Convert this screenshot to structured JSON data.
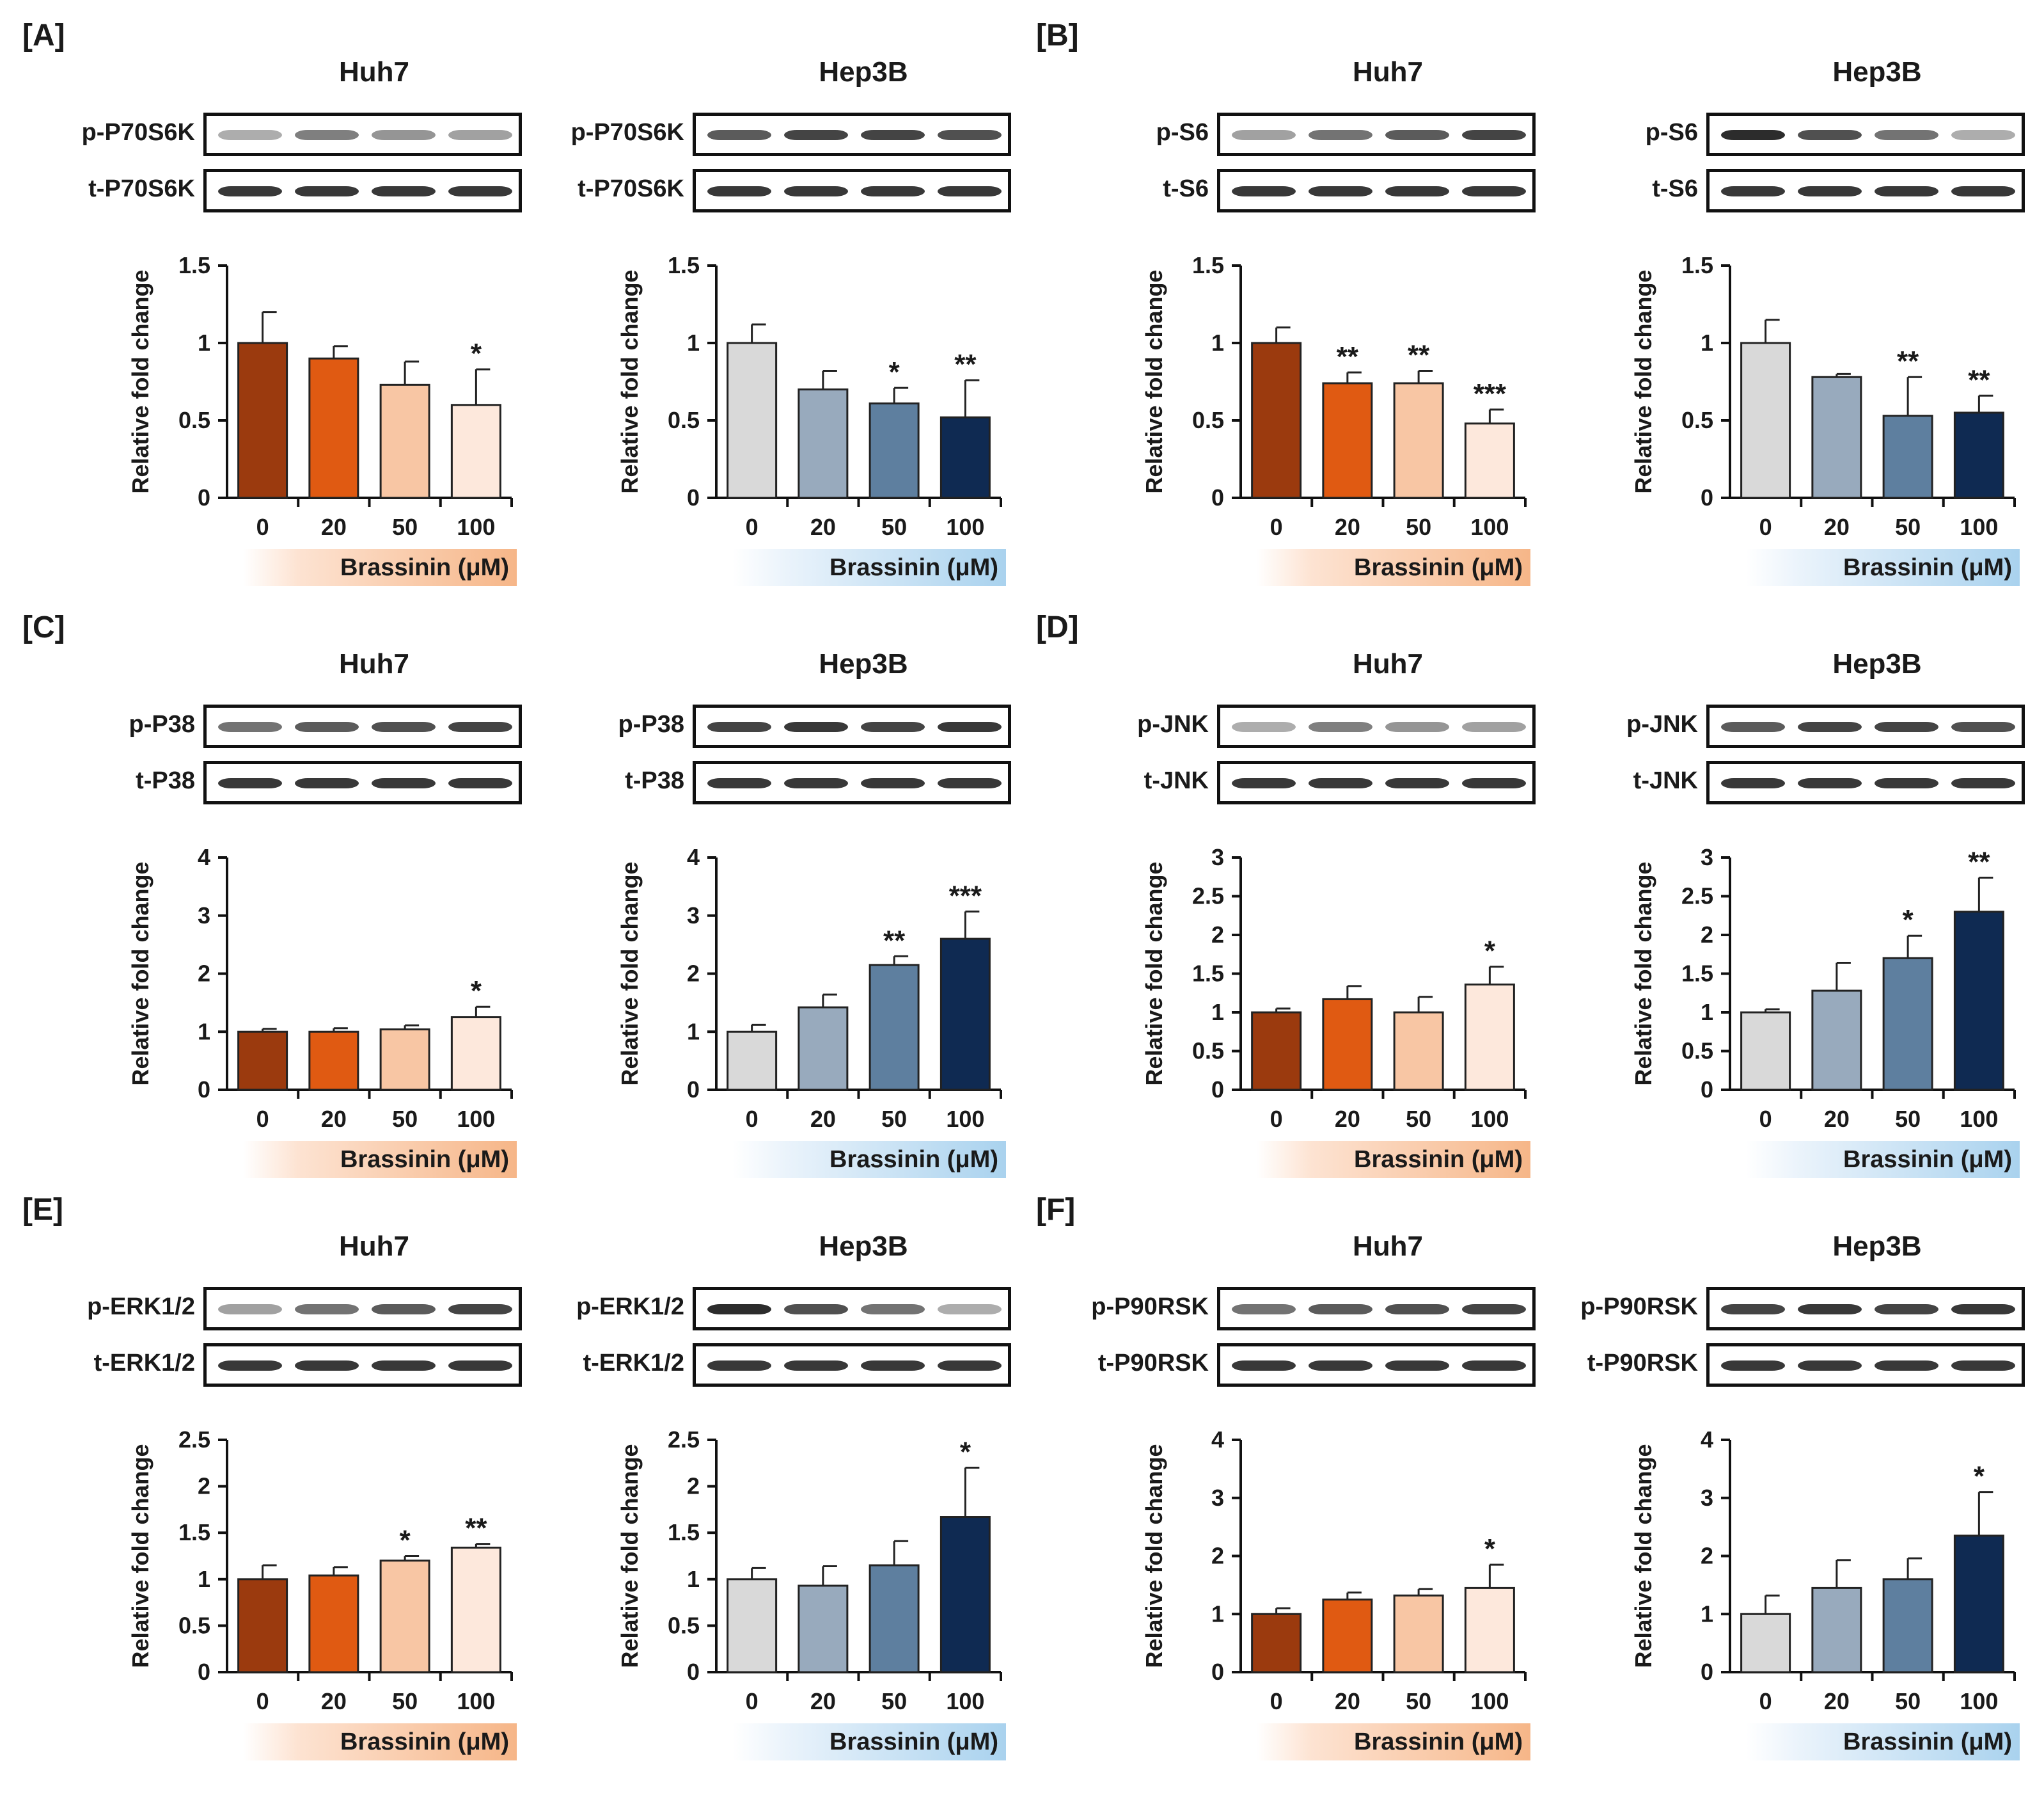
{
  "figure": {
    "x_caption": "Brassinin (μM)",
    "y_axis_label": "Relative fold change",
    "categories": [
      "0",
      "20",
      "50",
      "100"
    ],
    "colors": {
      "orange_series": [
        "#9b3a0e",
        "#e05a12",
        "#f8c6a4",
        "#fde8dc"
      ],
      "blue_series": [
        "#d9d9d9",
        "#98aabd",
        "#5e7f9f",
        "#0f2a52"
      ],
      "orange_caption_gradient": [
        "#fde3d2",
        "#f6b688"
      ],
      "blue_caption_gradient": [
        "#eaf3fb",
        "#a9d2ee"
      ],
      "blot_band": "#151515"
    }
  },
  "panels": [
    {
      "label": "[A]",
      "units": [
        {
          "cell": "Huh7",
          "blots": [
            "p-P70S6K",
            "t-P70S6K"
          ],
          "palette": "orange",
          "chart_data": {
            "type": "bar",
            "categories": [
              "0",
              "20",
              "50",
              "100"
            ],
            "values": [
              1.0,
              0.9,
              0.73,
              0.6
            ],
            "errors": [
              0.2,
              0.08,
              0.15,
              0.23
            ],
            "sig": [
              "",
              "",
              "",
              "*"
            ],
            "ylim": [
              0,
              1.5
            ],
            "yticks": [
              "0",
              "0.5",
              "1",
              "1.5"
            ],
            "ylabel": "Relative fold change",
            "xlabel": "Brassinin (μM)"
          }
        },
        {
          "cell": "Hep3B",
          "blots": [
            "p-P70S6K",
            "t-P70S6K"
          ],
          "palette": "blue",
          "chart_data": {
            "type": "bar",
            "categories": [
              "0",
              "20",
              "50",
              "100"
            ],
            "values": [
              1.0,
              0.7,
              0.61,
              0.52
            ],
            "errors": [
              0.12,
              0.12,
              0.1,
              0.24
            ],
            "sig": [
              "",
              "",
              "*",
              "**"
            ],
            "ylim": [
              0,
              1.5
            ],
            "yticks": [
              "0",
              "0.5",
              "1",
              "1.5"
            ],
            "ylabel": "Relative fold change",
            "xlabel": "Brassinin (μM)"
          }
        }
      ]
    },
    {
      "label": "[B]",
      "units": [
        {
          "cell": "Huh7",
          "blots": [
            "p-S6",
            "t-S6"
          ],
          "palette": "orange",
          "chart_data": {
            "type": "bar",
            "categories": [
              "0",
              "20",
              "50",
              "100"
            ],
            "values": [
              1.0,
              0.74,
              0.74,
              0.48
            ],
            "errors": [
              0.1,
              0.07,
              0.08,
              0.09
            ],
            "sig": [
              "",
              "**",
              "**",
              "***"
            ],
            "ylim": [
              0,
              1.5
            ],
            "yticks": [
              "0",
              "0.5",
              "1",
              "1.5"
            ],
            "ylabel": "Relative fold change",
            "xlabel": "Brassinin (μM)"
          }
        },
        {
          "cell": "Hep3B",
          "blots": [
            "p-S6",
            "t-S6"
          ],
          "palette": "blue",
          "chart_data": {
            "type": "bar",
            "categories": [
              "0",
              "20",
              "50",
              "100"
            ],
            "values": [
              1.0,
              0.78,
              0.53,
              0.55
            ],
            "errors": [
              0.15,
              0.02,
              0.25,
              0.11
            ],
            "sig": [
              "",
              "",
              "**",
              "**"
            ],
            "ylim": [
              0,
              1.5
            ],
            "yticks": [
              "0",
              "0.5",
              "1",
              "1.5"
            ],
            "ylabel": "Relative fold change",
            "xlabel": "Brassinin (μM)"
          }
        }
      ]
    },
    {
      "label": "[C]",
      "units": [
        {
          "cell": "Huh7",
          "blots": [
            "p-P38",
            "t-P38"
          ],
          "palette": "orange",
          "chart_data": {
            "type": "bar",
            "categories": [
              "0",
              "20",
              "50",
              "100"
            ],
            "values": [
              1.0,
              1.0,
              1.04,
              1.25
            ],
            "errors": [
              0.05,
              0.06,
              0.07,
              0.18
            ],
            "sig": [
              "",
              "",
              "",
              "*"
            ],
            "ylim": [
              0,
              4
            ],
            "yticks": [
              "0",
              "1",
              "2",
              "3",
              "4"
            ],
            "ylabel": "Relative fold change",
            "xlabel": "Brassinin (μM)"
          }
        },
        {
          "cell": "Hep3B",
          "blots": [
            "p-P38",
            "t-P38"
          ],
          "palette": "blue",
          "chart_data": {
            "type": "bar",
            "categories": [
              "0",
              "20",
              "50",
              "100"
            ],
            "values": [
              1.0,
              1.42,
              2.15,
              2.6
            ],
            "errors": [
              0.12,
              0.22,
              0.15,
              0.47
            ],
            "sig": [
              "",
              "",
              "**",
              "***"
            ],
            "ylim": [
              0,
              4
            ],
            "yticks": [
              "0",
              "1",
              "2",
              "3",
              "4"
            ],
            "ylabel": "Relative fold change",
            "xlabel": "Brassinin (μM)"
          }
        }
      ]
    },
    {
      "label": "[D]",
      "units": [
        {
          "cell": "Huh7",
          "blots": [
            "p-JNK",
            "t-JNK"
          ],
          "palette": "orange",
          "chart_data": {
            "type": "bar",
            "categories": [
              "0",
              "20",
              "50",
              "100"
            ],
            "values": [
              1.0,
              1.17,
              1.0,
              1.36
            ],
            "errors": [
              0.05,
              0.17,
              0.2,
              0.23
            ],
            "sig": [
              "",
              "",
              "",
              "*"
            ],
            "ylim": [
              0,
              3
            ],
            "yticks": [
              "0",
              "0.5",
              "1",
              "1.5",
              "2",
              "2.5",
              "3"
            ],
            "ylabel": "Relative fold change",
            "xlabel": "Brassinin (μM)"
          }
        },
        {
          "cell": "Hep3B",
          "blots": [
            "p-JNK",
            "t-JNK"
          ],
          "palette": "blue",
          "chart_data": {
            "type": "bar",
            "categories": [
              "0",
              "20",
              "50",
              "100"
            ],
            "values": [
              1.0,
              1.28,
              1.7,
              2.3
            ],
            "errors": [
              0.04,
              0.36,
              0.29,
              0.44
            ],
            "sig": [
              "",
              "",
              "*",
              "**"
            ],
            "ylim": [
              0,
              3
            ],
            "yticks": [
              "0",
              "0.5",
              "1",
              "1.5",
              "2",
              "2.5",
              "3"
            ],
            "ylabel": "Relative fold change",
            "xlabel": "Brassinin (μM)"
          }
        }
      ]
    },
    {
      "label": "[E]",
      "units": [
        {
          "cell": "Huh7",
          "blots": [
            "p-ERK1/2",
            "t-ERK1/2"
          ],
          "palette": "orange",
          "chart_data": {
            "type": "bar",
            "categories": [
              "0",
              "20",
              "50",
              "100"
            ],
            "values": [
              1.0,
              1.04,
              1.2,
              1.34
            ],
            "errors": [
              0.15,
              0.09,
              0.05,
              0.04
            ],
            "sig": [
              "",
              "",
              "*",
              "**"
            ],
            "ylim": [
              0,
              2.5
            ],
            "yticks": [
              "0",
              "0.5",
              "1",
              "1.5",
              "2",
              "2.5"
            ],
            "ylabel": "Relative fold change",
            "xlabel": "Brassinin (μM)"
          }
        },
        {
          "cell": "Hep3B",
          "blots": [
            "p-ERK1/2",
            "t-ERK1/2"
          ],
          "palette": "blue",
          "chart_data": {
            "type": "bar",
            "categories": [
              "0",
              "20",
              "50",
              "100"
            ],
            "values": [
              1.0,
              0.93,
              1.15,
              1.67
            ],
            "errors": [
              0.12,
              0.21,
              0.26,
              0.53
            ],
            "sig": [
              "",
              "",
              "",
              "*"
            ],
            "ylim": [
              0,
              2.5
            ],
            "yticks": [
              "0",
              "0.5",
              "1",
              "1.5",
              "2",
              "2.5"
            ],
            "ylabel": "Relative fold change",
            "xlabel": "Brassinin (μM)"
          }
        }
      ]
    },
    {
      "label": "[F]",
      "units": [
        {
          "cell": "Huh7",
          "blots": [
            "p-P90RSK",
            "t-P90RSK"
          ],
          "palette": "orange",
          "chart_data": {
            "type": "bar",
            "categories": [
              "0",
              "20",
              "50",
              "100"
            ],
            "values": [
              1.0,
              1.25,
              1.32,
              1.45
            ],
            "errors": [
              0.1,
              0.12,
              0.11,
              0.4
            ],
            "sig": [
              "",
              "",
              "",
              "*"
            ],
            "ylim": [
              0,
              4
            ],
            "yticks": [
              "0",
              "1",
              "2",
              "3",
              "4"
            ],
            "ylabel": "Relative fold change",
            "xlabel": "Brassinin (μM)"
          }
        },
        {
          "cell": "Hep3B",
          "blots": [
            "p-P90RSK",
            "t-P90RSK"
          ],
          "palette": "blue",
          "chart_data": {
            "type": "bar",
            "categories": [
              "0",
              "20",
              "50",
              "100"
            ],
            "values": [
              1.0,
              1.45,
              1.6,
              2.35
            ],
            "errors": [
              0.32,
              0.48,
              0.36,
              0.75
            ],
            "sig": [
              "",
              "",
              "",
              "*"
            ],
            "ylim": [
              0,
              4
            ],
            "yticks": [
              "0",
              "1",
              "2",
              "3",
              "4"
            ],
            "ylabel": "Relative fold change",
            "xlabel": "Brassinin (μM)"
          }
        }
      ]
    }
  ]
}
